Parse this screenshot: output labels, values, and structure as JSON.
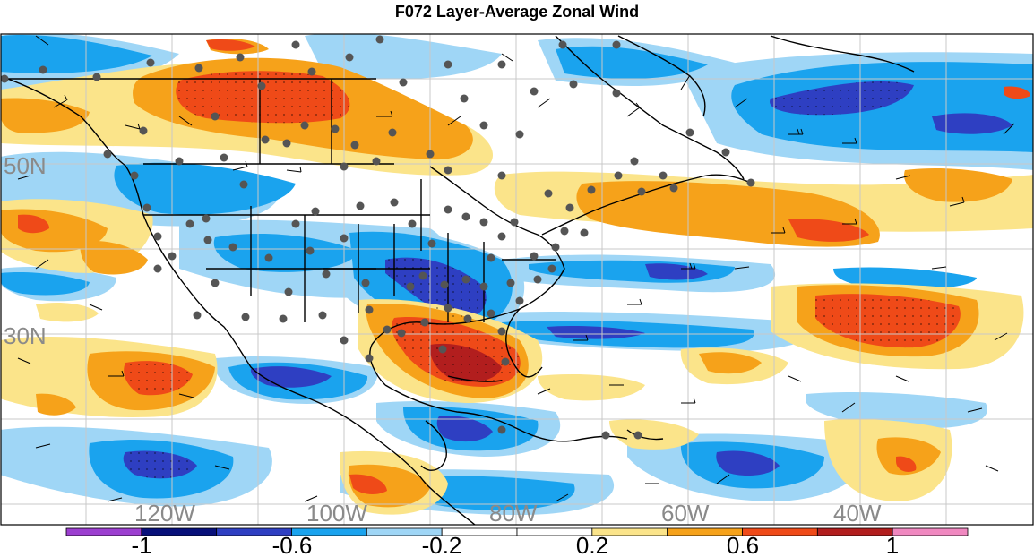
{
  "title": "F072 Layer-Average Zonal Wind",
  "map": {
    "lon_labels": [
      "120W",
      "100W",
      "80W",
      "60W",
      "40W"
    ],
    "lat_labels": [
      "50N",
      "30N"
    ],
    "background": "#ffffff",
    "gridline_color": "#c8c8c8",
    "coast_color": "#000000",
    "station_color": "#555555"
  },
  "colorbar": {
    "ticks": [
      "-1",
      "-0.6",
      "-0.2",
      "0.2",
      "0.6",
      "1"
    ],
    "colors": [
      "#9c3fd0",
      "#08107a",
      "#2e3fc2",
      "#1aa3ee",
      "#9fd6f6",
      "#ffffff",
      "#ffffff",
      "#fbe48a",
      "#f6a21a",
      "#ef4a18",
      "#b21e1e",
      "#f088c0"
    ]
  }
}
